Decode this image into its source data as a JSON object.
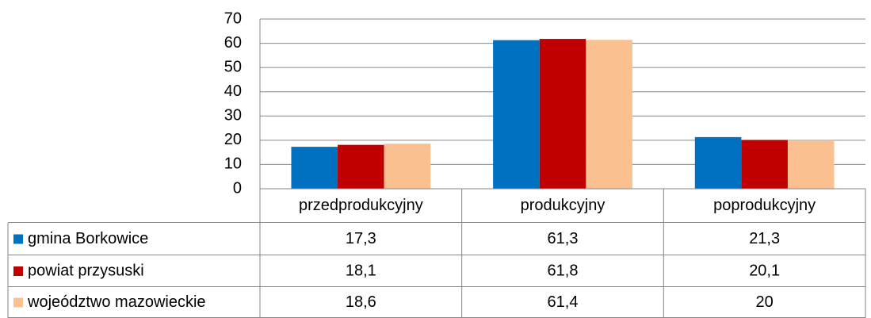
{
  "chart_data": {
    "type": "bar",
    "categories": [
      "przedprodukcyjny",
      "produkcyjny",
      "poprodukcyjny"
    ],
    "series": [
      {
        "name": "gmina Borkowice",
        "color": "#0070c0",
        "values": [
          17.3,
          61.3,
          21.3
        ],
        "value_labels": [
          "17,3",
          "61,3",
          "21,3"
        ]
      },
      {
        "name": "powiat przysuski",
        "color": "#c00000",
        "values": [
          18.1,
          61.8,
          20.1
        ],
        "value_labels": [
          "18,1",
          "61,8",
          "20,1"
        ]
      },
      {
        "name": "wojeództwo mazowieckie",
        "color": "#fac090",
        "values": [
          18.6,
          61.4,
          20
        ],
        "value_labels": [
          "18,6",
          "61,4",
          "20"
        ]
      }
    ],
    "ylim": [
      0,
      70
    ],
    "yticks": [
      0,
      10,
      20,
      30,
      40,
      50,
      60,
      70
    ],
    "grid": true
  }
}
